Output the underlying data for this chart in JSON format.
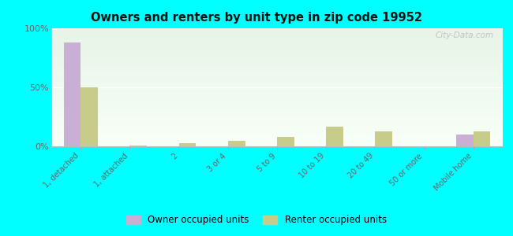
{
  "title": "Owners and renters by unit type in zip code 19952",
  "categories": [
    "1, detached",
    "1, attached",
    "2",
    "3 or 4",
    "5 to 9",
    "10 to 19",
    "20 to 49",
    "50 or more",
    "Mobile home"
  ],
  "owner_values": [
    88,
    0,
    0,
    0,
    0,
    0,
    0,
    0,
    10
  ],
  "renter_values": [
    50,
    1,
    3,
    5,
    8,
    17,
    13,
    0,
    13
  ],
  "owner_color": "#c9afd4",
  "renter_color": "#c8cc8a",
  "background_color": "#00ffff",
  "plot_bg_color_top": "#e8f4e8",
  "plot_bg_color_bottom": "#f8fff8",
  "ylim": [
    0,
    100
  ],
  "yticks": [
    0,
    50,
    100
  ],
  "ytick_labels": [
    "0%",
    "50%",
    "100%"
  ],
  "watermark": "City-Data.com",
  "legend_owner": "Owner occupied units",
  "legend_renter": "Renter occupied units",
  "bar_width": 0.35
}
